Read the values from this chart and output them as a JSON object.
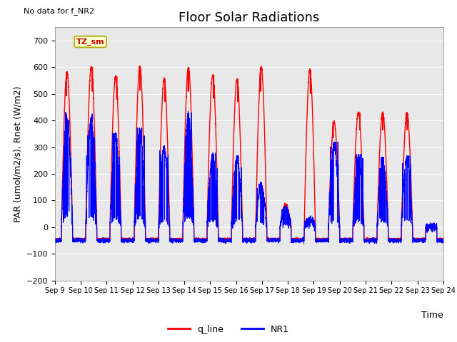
{
  "title": "Floor Solar Radiations",
  "xlabel": "Time",
  "ylabel": "PAR (umol/m2/s), Rnet (W/m2)",
  "ylim": [
    -200,
    750
  ],
  "yticks": [
    -200,
    -100,
    0,
    100,
    200,
    300,
    400,
    500,
    600,
    700
  ],
  "annotation_text": "No data for f_NR2",
  "legend_box_text": "TZ_sm",
  "legend_box_color": "#ffffcc",
  "legend_box_edge": "#aaaa00",
  "legend_box_text_color": "#cc0000",
  "line1_color": "red",
  "line1_label": "q_line",
  "line2_color": "blue",
  "line2_label": "NR1",
  "background_color": "#e8e8e8",
  "fig_background": "#ffffff",
  "start_day": 9,
  "end_day": 24,
  "x_tick_labels": [
    "Sep 9",
    "Sep 10",
    "Sep 11",
    "Sep 12",
    "Sep 13",
    "Sep 14",
    "Sep 15",
    "Sep 16",
    "Sep 17",
    "Sep 18",
    "Sep 19",
    "Sep 20",
    "Sep 21",
    "Sep 22",
    "Sep 23",
    "Sep 24"
  ],
  "day_peaks_q": [
    580,
    600,
    565,
    605,
    555,
    600,
    570,
    555,
    600,
    85,
    590,
    395,
    430,
    430,
    430,
    0
  ],
  "day_peaks_nr": [
    410,
    405,
    335,
    355,
    295,
    415,
    265,
    255,
    155,
    70,
    30,
    305,
    260,
    250,
    255,
    0
  ],
  "night_base": -45,
  "night_nr": -50,
  "title_fontsize": 13,
  "axis_fontsize": 9,
  "tick_fontsize": 8
}
